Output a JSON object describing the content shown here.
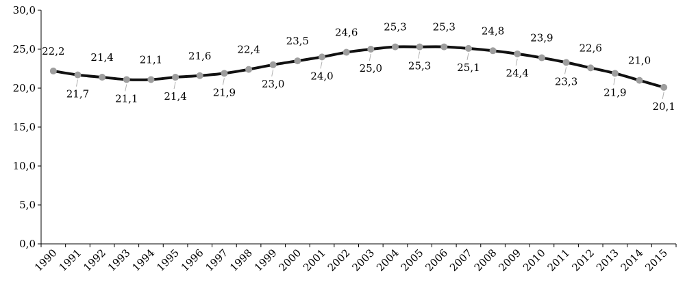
{
  "chart_data": {
    "type": "line",
    "x": [
      "1990",
      "1991",
      "1992",
      "1993",
      "1994",
      "1995",
      "1996",
      "1997",
      "1998",
      "1999",
      "2000",
      "2001",
      "2002",
      "2003",
      "2004",
      "2005",
      "2006",
      "2007",
      "2008",
      "2009",
      "2010",
      "2011",
      "2012",
      "2013",
      "2014",
      "2015"
    ],
    "series": [
      {
        "values": [
          22.2,
          21.7,
          21.4,
          21.1,
          21.1,
          21.4,
          21.6,
          21.9,
          22.4,
          23.0,
          23.5,
          24.0,
          24.6,
          25.0,
          25.3,
          25.3,
          25.3,
          25.1,
          24.8,
          24.4,
          23.9,
          23.3,
          22.6,
          21.9,
          21.0,
          20.1
        ],
        "labels": [
          "22,2",
          "21,7",
          "21,4",
          "21,1",
          "21,1",
          "21,4",
          "21,6",
          "21,9",
          "22,4",
          "23,0",
          "23,5",
          "24,0",
          "24,6",
          "25,0",
          "25,3",
          "25,3",
          "25,3",
          "25,1",
          "24,8",
          "24,4",
          "23,9",
          "23,3",
          "22,6",
          "21,9",
          "21,0",
          "20,1"
        ],
        "label_position": [
          "above",
          "below",
          "above",
          "below",
          "above",
          "below",
          "above",
          "below",
          "above",
          "below",
          "above",
          "below",
          "above",
          "below",
          "above",
          "below",
          "above",
          "below",
          "above",
          "below",
          "above",
          "below",
          "above",
          "below",
          "above",
          "below"
        ],
        "line_color": "#111111",
        "marker_color": "#9e9e9e"
      }
    ],
    "y_ticks": [
      "0,0",
      "5,0",
      "10,0",
      "15,0",
      "20,0",
      "25,0",
      "30,0"
    ],
    "ylim": [
      0,
      30
    ],
    "title": "",
    "xlabel": "",
    "ylabel": "",
    "grid": false,
    "legend": "none"
  }
}
